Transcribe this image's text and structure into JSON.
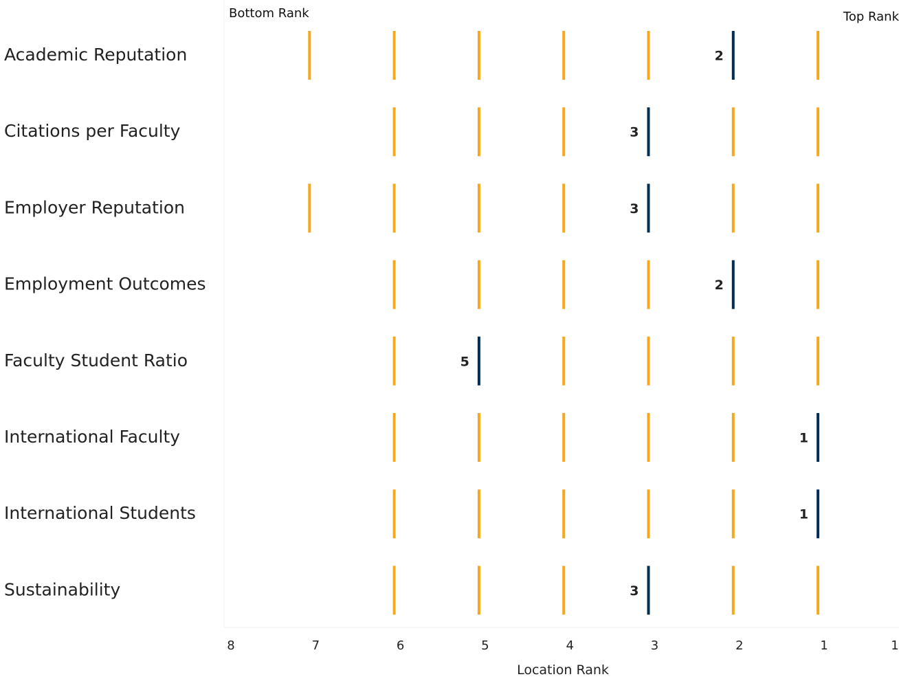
{
  "chart_data": {
    "type": "strip",
    "xlabel": "Location Rank",
    "x_axis_reversed": true,
    "xlim": [
      8,
      0.1
    ],
    "ticks": [
      "8",
      "7",
      "6",
      "5",
      "4",
      "3",
      "2",
      "1",
      "1"
    ],
    "corner_labels": {
      "left": "Bottom Rank",
      "right": "Top Rank"
    },
    "colors": {
      "others": "#F5A81C",
      "highlight": "#002D56"
    },
    "rows": [
      {
        "category": "Academic Reputation",
        "ranks": [
          7,
          6,
          5,
          4,
          3,
          2,
          1
        ],
        "highlight": 2
      },
      {
        "category": "Citations per Faculty",
        "ranks": [
          6,
          5,
          4,
          3,
          2,
          1
        ],
        "highlight": 3
      },
      {
        "category": "Employer Reputation",
        "ranks": [
          7,
          6,
          5,
          4,
          3,
          2,
          1
        ],
        "highlight": 3
      },
      {
        "category": "Employment Outcomes",
        "ranks": [
          6,
          5,
          4,
          3,
          2,
          1
        ],
        "highlight": 2
      },
      {
        "category": "Faculty Student Ratio",
        "ranks": [
          6,
          5,
          4,
          3,
          2,
          1
        ],
        "highlight": 5
      },
      {
        "category": "International Faculty",
        "ranks": [
          6,
          5,
          4,
          3,
          2,
          1
        ],
        "highlight": 1
      },
      {
        "category": "International Students",
        "ranks": [
          6,
          5,
          4,
          3,
          2,
          1
        ],
        "highlight": 1
      },
      {
        "category": "Sustainability",
        "ranks": [
          6,
          5,
          4,
          3,
          2,
          1
        ],
        "highlight": 3
      }
    ]
  }
}
